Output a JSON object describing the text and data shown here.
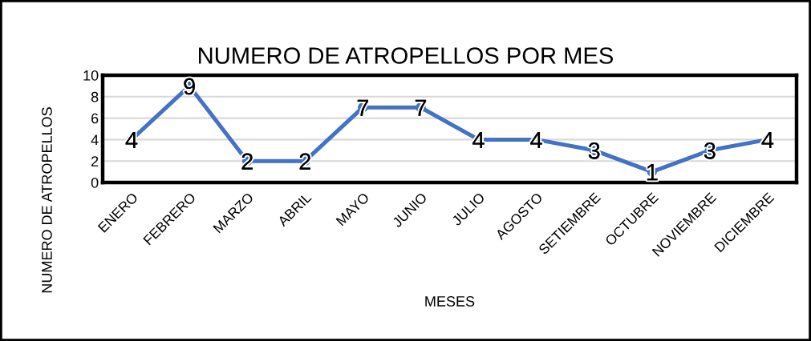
{
  "chart_data": {
    "type": "line",
    "title": "NUMERO DE ATROPELLOS POR MES",
    "xlabel": "MESES",
    "ylabel": "NUMERO DE ATROPELLOS",
    "categories": [
      "ENERO",
      "FEBRERO",
      "MARZO",
      "ABRIL",
      "MAYO",
      "JUNIO",
      "JULIO",
      "AGOSTO",
      "SETIEMBRE",
      "OCTUBRE",
      "NOVIEMBRE",
      "DICIEMBRE"
    ],
    "series": [
      {
        "color": "#4472c4",
        "values": [
          4,
          9,
          2,
          2,
          7,
          7,
          4,
          4,
          3,
          1,
          3,
          4
        ]
      }
    ],
    "ylim": [
      0,
      10
    ],
    "yticks": [
      0,
      2,
      4,
      6,
      8,
      10
    ],
    "grid": "y",
    "marker": "circle",
    "line_style": "solid",
    "data_labels": true
  }
}
